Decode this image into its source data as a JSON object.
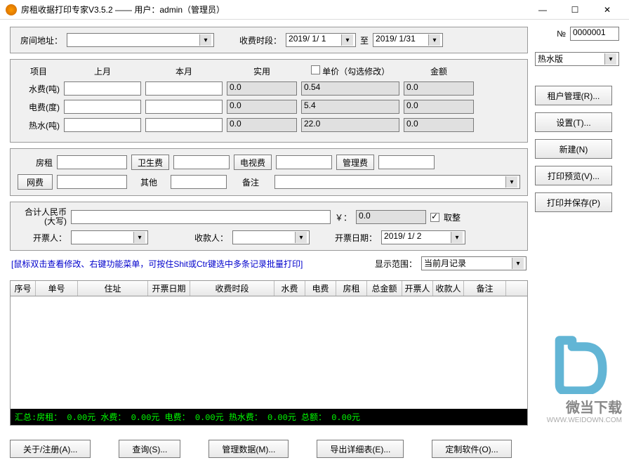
{
  "window": {
    "title": "房租收据打印专家V3.5.2 —— 用户：admin（管理员）"
  },
  "no_label": "№",
  "no_value": "0000001",
  "version_select": "热水版",
  "address": {
    "label": "房间地址：",
    "value": ""
  },
  "period": {
    "label": "收费时段：",
    "from": "2019/ 1/ 1",
    "to_label": "至",
    "to": "2019/ 1/31"
  },
  "meters": {
    "headers": {
      "item": "项目",
      "last": "上月",
      "curr": "本月",
      "usage": "实用",
      "price": "单价（勾选修改）",
      "amount": "金额"
    },
    "rows": [
      {
        "label": "水费(吨)",
        "last": "",
        "curr": "",
        "usage": "0.0",
        "price": "0.54",
        "amount": "0.0"
      },
      {
        "label": "电费(度)",
        "last": "",
        "curr": "",
        "usage": "0.0",
        "price": "5.4",
        "amount": "0.0"
      },
      {
        "label": "热水(吨)",
        "last": "",
        "curr": "",
        "usage": "0.0",
        "price": "22.0",
        "amount": "0.0"
      }
    ],
    "price_checkbox": false
  },
  "fees": {
    "rent": {
      "label": "房租",
      "value": ""
    },
    "clean": {
      "button": "卫生费",
      "value": ""
    },
    "tv": {
      "button": "电视费",
      "value": ""
    },
    "mgmt": {
      "button": "管理费",
      "value": ""
    },
    "net": {
      "button": "网费",
      "value": ""
    },
    "other": {
      "label": "其他",
      "value": ""
    },
    "remark": {
      "label": "备注",
      "value": ""
    }
  },
  "total": {
    "label": "合计人民币\n(大写)",
    "value": "",
    "currency": "￥：",
    "numeric": "0.0",
    "round_label": "取整",
    "round_checked": true,
    "issuer_label": "开票人：",
    "issuer": "",
    "cashier_label": "收款人：",
    "cashier": "",
    "date_label": "开票日期：",
    "date": "2019/ 1/ 2"
  },
  "hint": "[鼠标双击查看修改、右键功能菜单，可按住Shit或Ctr键选中多条记录批量打印]",
  "scope": {
    "label": "显示范围：",
    "value": "当前月记录"
  },
  "table": {
    "cols": [
      "序号",
      "单号",
      "住址",
      "开票日期",
      "收费时段",
      "水费",
      "电费",
      "房租",
      "总金额",
      "开票人",
      "收款人",
      "备注"
    ],
    "widths": [
      36,
      60,
      100,
      60,
      120,
      44,
      44,
      44,
      50,
      44,
      44,
      60
    ]
  },
  "summary": {
    "text": "汇总:房租： 0.00元  水费： 0.00元  电费： 0.00元  热水费： 0.00元  总额： 0.00元"
  },
  "side_buttons": {
    "tenant": "租户管理(R)...",
    "settings": "设置(T)...",
    "new": "新建(N)",
    "preview": "打印预览(V)...",
    "save": "打印并保存(P)"
  },
  "bottom_buttons": {
    "about": "关于/注册(A)...",
    "query": "查询(S)...",
    "manage": "管理数据(M)...",
    "export": "导出详细表(E)...",
    "custom": "定制软件(O)..."
  },
  "watermark": {
    "brand": "微当下载",
    "url": "WWW.WEIDOWN.COM"
  }
}
